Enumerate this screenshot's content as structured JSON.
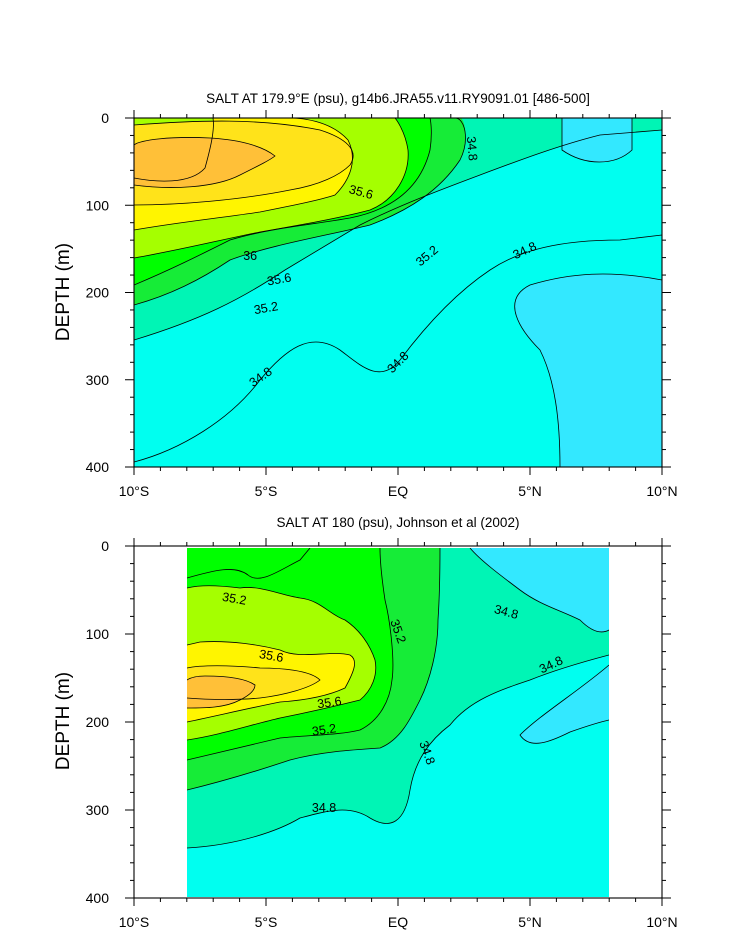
{
  "chart_data": [
    {
      "type": "contour",
      "title": "SALT AT 179.9°E (psu), g14b6.JRA55.v11.RY9091.01 [486-500]",
      "xlabel": "",
      "ylabel": "DEPTH (m)",
      "xlim": [
        -10,
        10
      ],
      "ylim": [
        400,
        0
      ],
      "x_ticks": [
        -10,
        -5,
        0,
        5,
        10
      ],
      "x_tick_labels": [
        "10°S",
        "5°S",
        "EQ",
        "5°N",
        "10°N"
      ],
      "y_ticks": [
        0,
        100,
        200,
        300,
        400
      ],
      "y_tick_labels": [
        "0",
        "100",
        "200",
        "300",
        "400"
      ],
      "data_extent": {
        "lat": [
          -10,
          10
        ],
        "depth": [
          0,
          400
        ]
      },
      "contour_levels": [
        34.6,
        34.8,
        35.0,
        35.2,
        35.4,
        35.6,
        35.8,
        36.0
      ],
      "contour_labels": [
        {
          "text": "34.8",
          "lat": 2.8,
          "depth": 35,
          "rotate": 85
        },
        {
          "text": "35.6",
          "lat": -1.4,
          "depth": 85,
          "rotate": 15
        },
        {
          "text": "36",
          "lat": -5.6,
          "depth": 158,
          "rotate": 0
        },
        {
          "text": "35.2",
          "lat": 1.1,
          "depth": 158,
          "rotate": -40
        },
        {
          "text": "34.8",
          "lat": 4.8,
          "depth": 152,
          "rotate": -25
        },
        {
          "text": "35.6",
          "lat": -4.5,
          "depth": 185,
          "rotate": -10
        },
        {
          "text": "35.2",
          "lat": -5.0,
          "depth": 218,
          "rotate": -10
        },
        {
          "text": "34.8",
          "lat": 0.0,
          "depth": 280,
          "rotate": -45
        },
        {
          "text": "34.8",
          "lat": -5.2,
          "depth": 297,
          "rotate": -35
        }
      ]
    },
    {
      "type": "contour",
      "title": "SALT AT 180 (psu), Johnson et al (2002)",
      "xlabel": "",
      "ylabel": "DEPTH (m)",
      "xlim": [
        -10,
        10
      ],
      "ylim": [
        400,
        0
      ],
      "x_ticks": [
        -10,
        -5,
        0,
        5,
        10
      ],
      "x_tick_labels": [
        "10°S",
        "5°S",
        "EQ",
        "5°N",
        "10°N"
      ],
      "y_ticks": [
        0,
        100,
        200,
        300,
        400
      ],
      "y_tick_labels": [
        "0",
        "100",
        "200",
        "300",
        "400"
      ],
      "data_extent": {
        "lat": [
          -8,
          8
        ],
        "depth": [
          0,
          400
        ]
      },
      "contour_levels": [
        34.6,
        34.8,
        35.0,
        35.2,
        35.4,
        35.6,
        35.8,
        36.0
      ],
      "contour_labels": [
        {
          "text": "35.2",
          "lat": -6.2,
          "depth": 60,
          "rotate": 10
        },
        {
          "text": "35.2",
          "lat": 0.0,
          "depth": 97,
          "rotate": 70
        },
        {
          "text": "34.8",
          "lat": 4.1,
          "depth": 75,
          "rotate": 15
        },
        {
          "text": "35.6",
          "lat": -4.8,
          "depth": 125,
          "rotate": 10
        },
        {
          "text": "34.8",
          "lat": 5.8,
          "depth": 135,
          "rotate": -25
        },
        {
          "text": "35.6",
          "lat": -2.6,
          "depth": 178,
          "rotate": -8
        },
        {
          "text": "35.2",
          "lat": -2.8,
          "depth": 209,
          "rotate": -8
        },
        {
          "text": "34.8",
          "lat": 1.1,
          "depth": 235,
          "rotate": 70
        },
        {
          "text": "34.8",
          "lat": -2.8,
          "depth": 298,
          "rotate": 0
        }
      ]
    }
  ],
  "colors": {
    "s34_6": "#33e8ff",
    "s34_8": "#00fff0",
    "s35_0": "#00f5b5",
    "s35_2": "#16ec37",
    "s35_4": "#00ff00",
    "s35_6": "#a5ff00",
    "s35_8": "#fff500",
    "s36_0": "#ffe31a",
    "s36_2": "#ffc038"
  }
}
